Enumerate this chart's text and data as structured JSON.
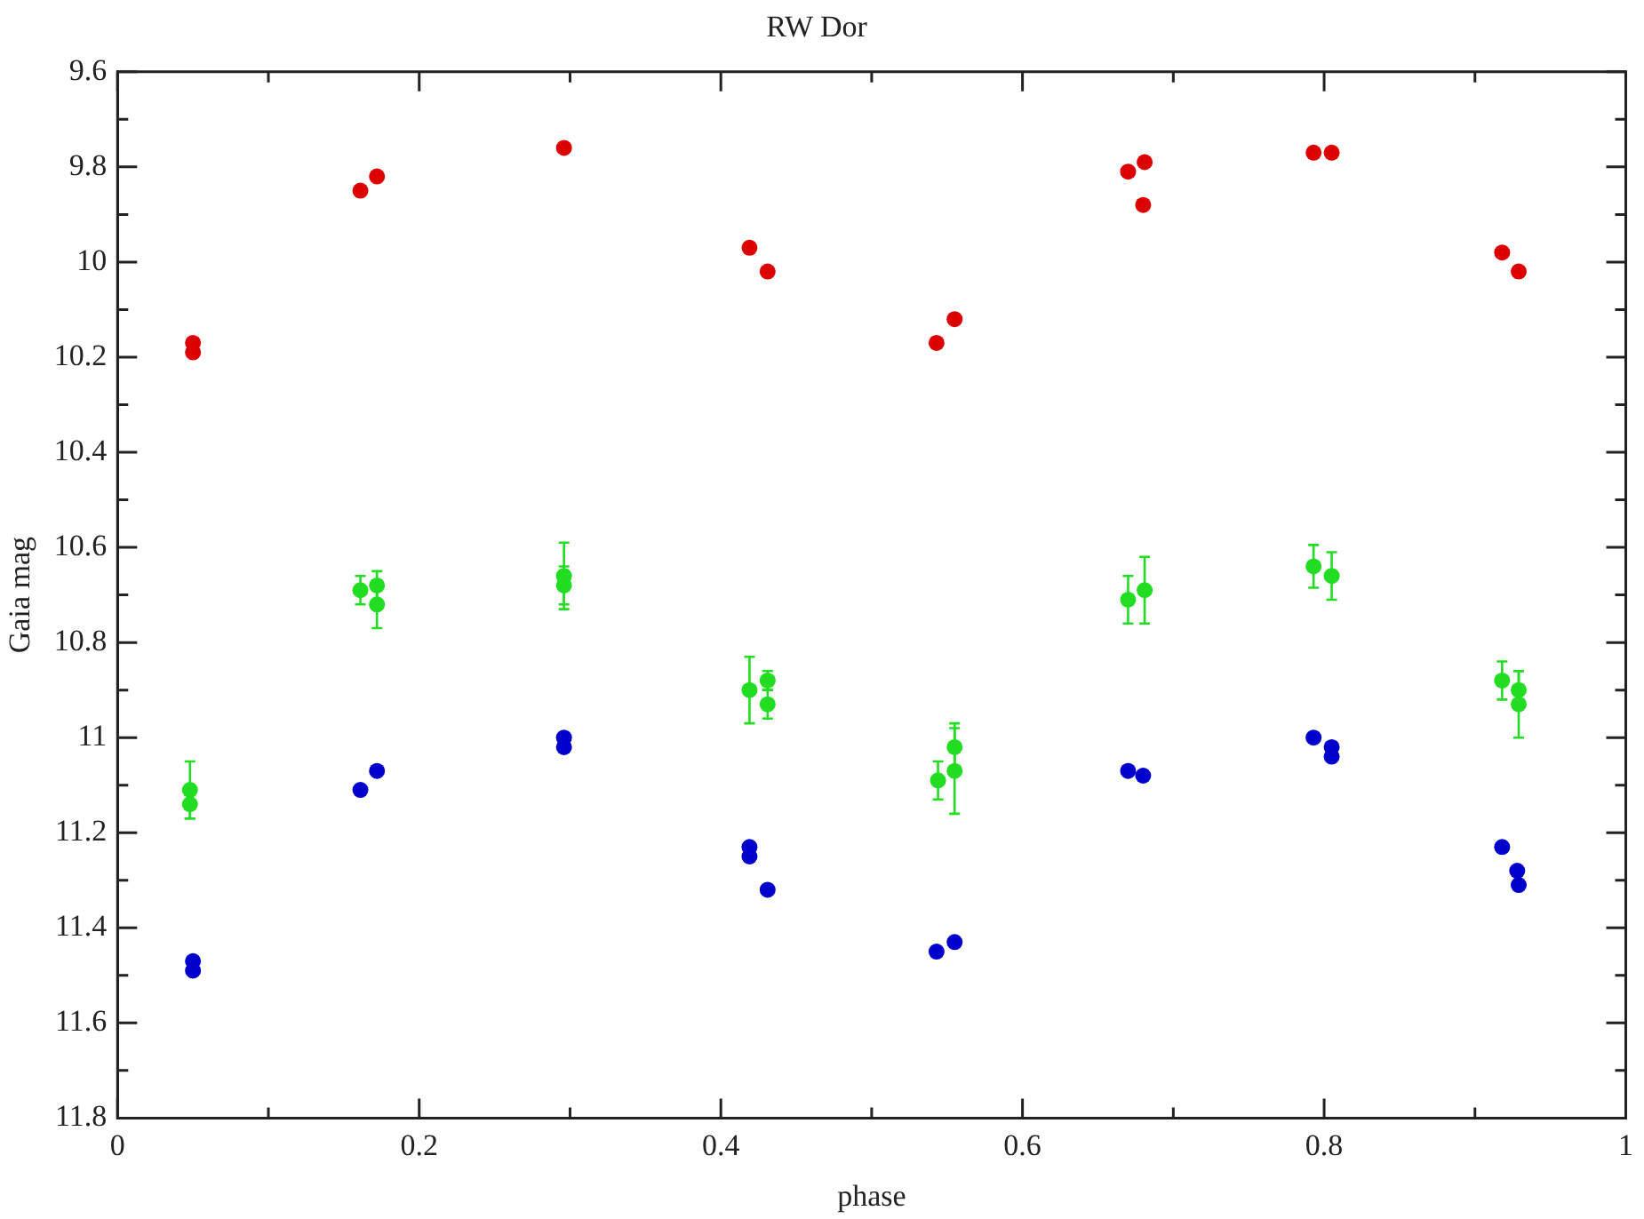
{
  "chart_data": {
    "type": "scatter",
    "title": "RW Dor",
    "xlabel": "phase",
    "ylabel": "Gaia mag",
    "marker": "circle",
    "grid": false,
    "xlim": [
      0,
      1
    ],
    "xticks": [
      0,
      {
        "value": 0.1,
        "label": null
      },
      0.2,
      {
        "value": 0.3,
        "label": null
      },
      0.4,
      {
        "value": 0.5,
        "label": null
      },
      0.6,
      {
        "value": 0.7,
        "label": null
      },
      0.8,
      {
        "value": 0.9,
        "label": null
      },
      1
    ],
    "ylim": [
      11.8,
      9.6
    ],
    "yticks": [
      9.6,
      {
        "value": 9.7,
        "label": null
      },
      9.8,
      {
        "value": 9.9,
        "label": null
      },
      10,
      {
        "value": 10.1,
        "label": null
      },
      10.2,
      {
        "value": 10.3,
        "label": null
      },
      10.4,
      {
        "value": 10.5,
        "label": null
      },
      10.6,
      {
        "value": 10.7,
        "label": null
      },
      10.8,
      {
        "value": 10.9,
        "label": null
      },
      11,
      {
        "value": 11.1,
        "label": null
      },
      11.2,
      {
        "value": 11.3,
        "label": null
      },
      11.4,
      {
        "value": 11.5,
        "label": null
      },
      11.6,
      {
        "value": 11.7,
        "label": null
      },
      11.8
    ],
    "series": [
      {
        "color": "#dd0000",
        "x": [
          0.05,
          0.05,
          0.161,
          0.172,
          0.296,
          0.419,
          0.431,
          0.543,
          0.555,
          0.67,
          0.681,
          0.68,
          0.793,
          0.805,
          0.918,
          0.929
        ],
        "values": [
          10.17,
          10.19,
          9.85,
          9.82,
          9.76,
          9.97,
          10.02,
          10.17,
          10.12,
          9.81,
          9.79,
          9.88,
          9.77,
          9.77,
          9.98,
          10.02
        ]
      },
      {
        "color": "#22dd22",
        "x": [
          0.048,
          0.048,
          0.161,
          0.172,
          0.172,
          0.296,
          0.296,
          0.419,
          0.431,
          0.431,
          0.544,
          0.555,
          0.555,
          0.67,
          0.681,
          0.793,
          0.805,
          0.918,
          0.929,
          0.929
        ],
        "values": [
          11.11,
          11.14,
          10.69,
          10.68,
          10.72,
          10.66,
          10.68,
          10.9,
          10.88,
          10.93,
          11.09,
          11.02,
          11.07,
          10.71,
          10.69,
          10.64,
          10.66,
          10.88,
          10.9,
          10.93
        ],
        "errors": [
          0.06,
          0.03,
          0.03,
          0.03,
          0.05,
          0.07,
          0.04,
          0.07,
          0.02,
          0.03,
          0.04,
          0.05,
          0.09,
          0.05,
          0.07,
          0.045,
          0.05,
          0.04,
          0.04,
          0.07
        ]
      },
      {
        "color": "#0000cc",
        "x": [
          0.05,
          0.05,
          0.161,
          0.172,
          0.296,
          0.296,
          0.419,
          0.419,
          0.431,
          0.543,
          0.555,
          0.67,
          0.68,
          0.793,
          0.805,
          0.805,
          0.918,
          0.928,
          0.929
        ],
        "values": [
          11.47,
          11.49,
          11.11,
          11.07,
          11.0,
          11.02,
          11.23,
          11.25,
          11.32,
          11.45,
          11.43,
          11.07,
          11.08,
          11.0,
          11.02,
          11.04,
          11.23,
          11.28,
          11.31
        ]
      }
    ]
  }
}
